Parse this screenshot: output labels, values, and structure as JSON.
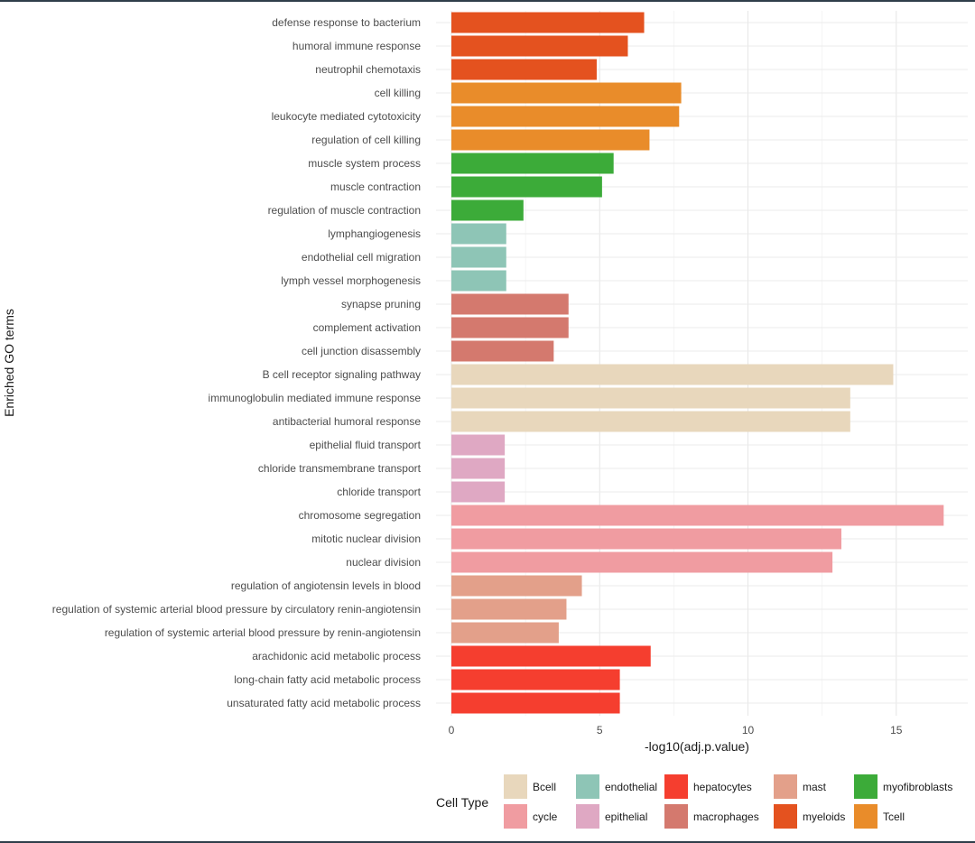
{
  "chart_data": {
    "type": "bar",
    "orientation": "horizontal",
    "xlabel": "-log10(adj.p.value)",
    "ylabel": "Enriched GO terms",
    "xlim": [
      0,
      17.3
    ],
    "xticks": [
      0,
      5,
      10,
      15
    ],
    "grid": true,
    "legend_title": "Cell Type",
    "legend_position": "bottom",
    "colors": {
      "Bcell": "#e8d7bc",
      "cycle": "#f09ca1",
      "endothelial": "#8ec5b6",
      "epithelial": "#dfa8c3",
      "hepatocytes": "#f53e2f",
      "macrophages": "#d4796e",
      "mast": "#e3a08a",
      "myeloids": "#e4521f",
      "myofibroblasts": "#3cab39",
      "Tcell": "#e98c2a"
    },
    "legend": [
      [
        "Bcell",
        "endothelial",
        "hepatocytes",
        "mast",
        "myofibroblasts"
      ],
      [
        "cycle",
        "epithelial",
        "macrophages",
        "myeloids",
        "Tcell"
      ]
    ],
    "bars": [
      {
        "term": "defense response to bacterium",
        "value": 6.5,
        "cell_type": "myeloids"
      },
      {
        "term": "humoral immune response",
        "value": 5.95,
        "cell_type": "myeloids"
      },
      {
        "term": "neutrophil chemotaxis",
        "value": 4.9,
        "cell_type": "myeloids"
      },
      {
        "term": "cell killing",
        "value": 7.75,
        "cell_type": "Tcell"
      },
      {
        "term": "leukocyte mediated cytotoxicity",
        "value": 7.68,
        "cell_type": "Tcell"
      },
      {
        "term": "regulation of cell killing",
        "value": 6.68,
        "cell_type": "Tcell"
      },
      {
        "term": "muscle system process",
        "value": 5.47,
        "cell_type": "myofibroblasts"
      },
      {
        "term": "muscle contraction",
        "value": 5.08,
        "cell_type": "myofibroblasts"
      },
      {
        "term": "regulation of muscle contraction",
        "value": 2.43,
        "cell_type": "myofibroblasts"
      },
      {
        "term": "lymphangiogenesis",
        "value": 1.85,
        "cell_type": "endothelial"
      },
      {
        "term": "endothelial cell migration",
        "value": 1.85,
        "cell_type": "endothelial"
      },
      {
        "term": "lymph vessel morphogenesis",
        "value": 1.85,
        "cell_type": "endothelial"
      },
      {
        "term": "synapse pruning",
        "value": 3.95,
        "cell_type": "macrophages"
      },
      {
        "term": "complement activation",
        "value": 3.95,
        "cell_type": "macrophages"
      },
      {
        "term": "cell junction disassembly",
        "value": 3.45,
        "cell_type": "macrophages"
      },
      {
        "term": "B cell receptor signaling pathway",
        "value": 14.9,
        "cell_type": "Bcell"
      },
      {
        "term": "immunoglobulin mediated immune response",
        "value": 13.45,
        "cell_type": "Bcell"
      },
      {
        "term": "antibacterial humoral response",
        "value": 13.45,
        "cell_type": "Bcell"
      },
      {
        "term": "epithelial fluid transport",
        "value": 1.8,
        "cell_type": "epithelial"
      },
      {
        "term": "chloride transmembrane transport",
        "value": 1.8,
        "cell_type": "epithelial"
      },
      {
        "term": "chloride transport",
        "value": 1.8,
        "cell_type": "epithelial"
      },
      {
        "term": "chromosome segregation",
        "value": 16.6,
        "cell_type": "cycle"
      },
      {
        "term": "mitotic nuclear division",
        "value": 13.15,
        "cell_type": "cycle"
      },
      {
        "term": "nuclear division",
        "value": 12.85,
        "cell_type": "cycle"
      },
      {
        "term": "regulation of angiotensin levels in blood",
        "value": 4.4,
        "cell_type": "mast"
      },
      {
        "term": "regulation of systemic arterial blood pressure by circulatory renin-angiotensin",
        "value": 3.88,
        "cell_type": "mast"
      },
      {
        "term": "regulation of systemic arterial blood pressure by renin-angiotensin",
        "value": 3.62,
        "cell_type": "mast"
      },
      {
        "term": "arachidonic acid metabolic process",
        "value": 6.72,
        "cell_type": "hepatocytes"
      },
      {
        "term": "long-chain fatty acid metabolic process",
        "value": 5.68,
        "cell_type": "hepatocytes"
      },
      {
        "term": "unsaturated fatty acid metabolic process",
        "value": 5.68,
        "cell_type": "hepatocytes"
      }
    ]
  }
}
